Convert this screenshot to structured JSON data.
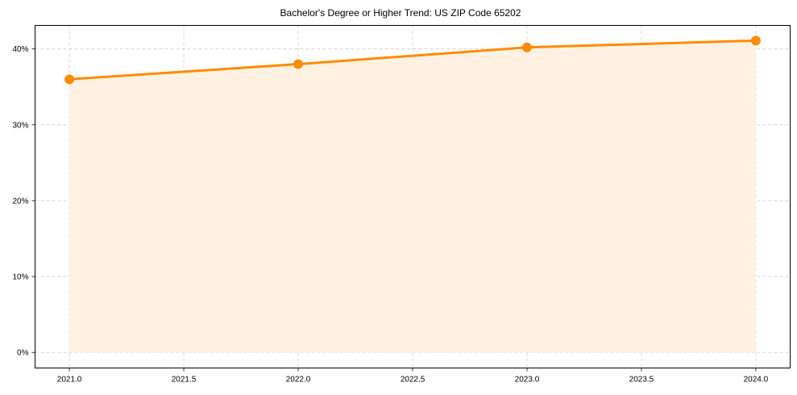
{
  "chart_data": {
    "type": "line",
    "title": "Bachelor's Degree or Higher Trend: US ZIP Code 65202",
    "xlabel": "",
    "ylabel": "",
    "x": [
      2021,
      2022,
      2023,
      2024
    ],
    "series": [
      {
        "name": "Bachelor's Degree or Higher",
        "values": [
          36.0,
          38.0,
          40.2,
          41.1
        ],
        "color": "#ff8c00",
        "fill": "#fff2e3"
      }
    ],
    "xticks": [
      "2021.0",
      "2021.5",
      "2022.0",
      "2022.5",
      "2023.0",
      "2023.5",
      "2024.0"
    ],
    "xtick_values": [
      2021.0,
      2021.5,
      2022.0,
      2022.5,
      2023.0,
      2023.5,
      2024.0
    ],
    "yticks": [
      "0%",
      "10%",
      "20%",
      "30%",
      "40%"
    ],
    "ytick_values": [
      0,
      10,
      20,
      30,
      40
    ],
    "xlim": [
      2020.85,
      2024.15
    ],
    "ylim": [
      -2.05,
      43.1
    ],
    "grid": true,
    "legend": null,
    "area_fill": true
  }
}
